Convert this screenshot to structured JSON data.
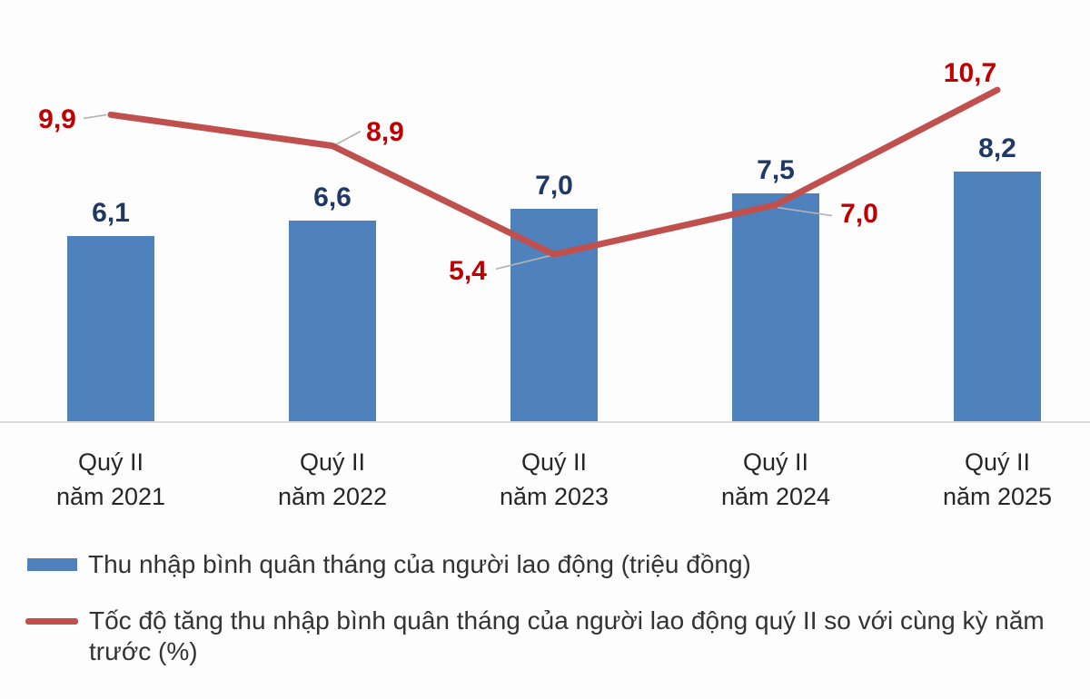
{
  "chart_data": {
    "type": "combo",
    "title": "",
    "categories": [
      [
        "Quý II",
        "năm 2021"
      ],
      [
        "Quý II",
        "năm 2022"
      ],
      [
        "Quý II",
        "năm 2023"
      ],
      [
        "Quý II",
        "năm 2024"
      ],
      [
        "Quý II",
        "năm 2025"
      ]
    ],
    "series": [
      {
        "name": "Thu nhập bình quân tháng của người lao động (triệu đồng)",
        "type": "bar",
        "color": "#4f81bd",
        "label_color": "#1f3864",
        "values": [
          6.1,
          6.6,
          7.0,
          7.5,
          8.2
        ],
        "labels": [
          "6,1",
          "6,6",
          "7,0",
          "7,5",
          "8,2"
        ]
      },
      {
        "name": "Tốc độ tăng thu nhập bình quân tháng của người lao động quý II so với cùng kỳ năm trước (%)",
        "type": "line",
        "color": "#c0504d",
        "label_color": "#c00000",
        "values": [
          9.9,
          8.9,
          5.4,
          7.0,
          10.7
        ],
        "labels": [
          "9,9",
          "8,9",
          "5,4",
          "7,0",
          "10,7"
        ]
      }
    ],
    "legend_position": "bottom",
    "grid": false,
    "y_axis_visible": false,
    "ylim_bar": [
      0,
      9
    ],
    "ylim_line": [
      0,
      12
    ]
  }
}
